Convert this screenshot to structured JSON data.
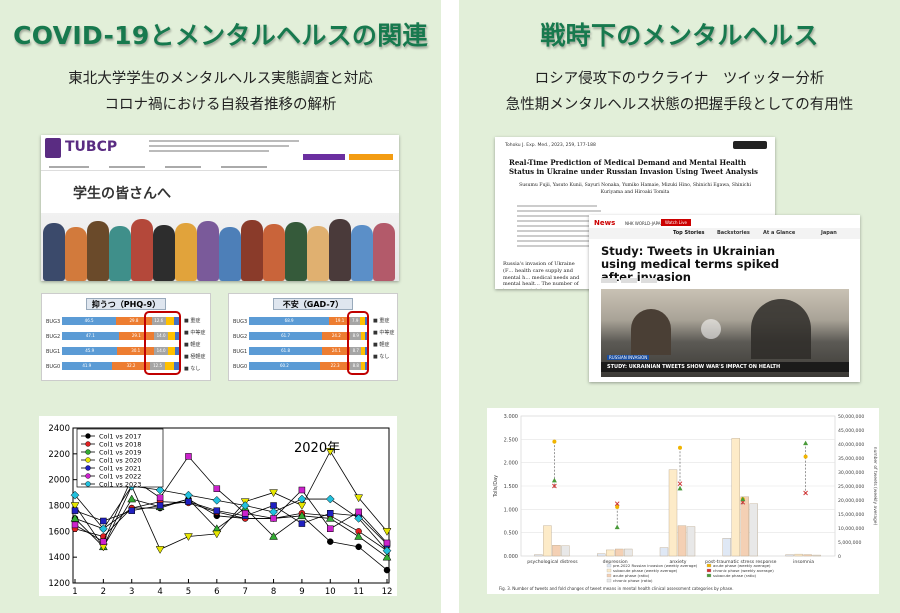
{
  "left": {
    "title": "COVID-19とメンタルヘルスの関連",
    "subtitle1": "東北大学学生のメンタルヘルス実態調査と対応",
    "subtitle2": "コロナ禍における自殺者推移の解析",
    "web": {
      "logo": "TUBCP",
      "heading": "学生の皆さんへ"
    },
    "phq": {
      "title": "抑うつ（PHQ-9）"
    },
    "gad": {
      "title": "不安（GAD-7）"
    }
  },
  "right": {
    "title": "戦時下のメンタルヘルス",
    "subtitle1": "ロシア侵攻下のウクライナ　ツイッター分析",
    "subtitle2": "急性期メンタルヘルス状態の把握手段としての有用性",
    "paper": {
      "journal": "Tohoku J. Exp. Med., 2023, 259, 177-188",
      "title": "Real-Time Prediction of Medical Demand and Mental Health Status in Ukraine under Russian Invasion Using Tweet Analysis",
      "authors": "Susumu Fujii, Yasuto Kunii, Sayuri Nonaka, Yumiko Hamaie, Mizuki Hino, Shinichi Egawa, Shinichi Kuriyama and Hiroaki Tomita",
      "body": "Russia's invasion of Ukraine (F… health care supply and mental h… medical needs and mental healt… The number of tweets containing"
    },
    "news": {
      "brand": "News",
      "nhk": "NHK WORLD-JAPAN",
      "watch": "Watch Live",
      "nav": [
        "Top Stories",
        "Backstories",
        "At a Glance",
        "Japan"
      ],
      "headline": "Study: Tweets in Ukrainian using medical terms spiked after invasion",
      "banner1": "RUSSIAN INVASION",
      "banner2": "STUDY: UKRAINIAN TWEETS SHOW WAR'S IMPACT ON HEALTH"
    }
  },
  "chart_data": [
    {
      "type": "line",
      "annotation": "2020年",
      "x": [
        1,
        2,
        3,
        4,
        5,
        6,
        7,
        8,
        9,
        10,
        11,
        12
      ],
      "ylim": [
        1200,
        2400
      ],
      "yticks": [
        1200,
        1400,
        1600,
        1800,
        2000,
        2200,
        2400
      ],
      "series": [
        {
          "name": "Col1 vs 2017",
          "color": "#000000",
          "values": [
            1700,
            1620,
            1780,
            1780,
            1850,
            1720,
            1700,
            1700,
            1720,
            1520,
            1480,
            1300
          ]
        },
        {
          "name": "Col1 vs 2018",
          "color": "#e02020",
          "values": [
            1620,
            1560,
            1780,
            1830,
            1820,
            1750,
            1700,
            1700,
            1740,
            1720,
            1600,
            1450
          ]
        },
        {
          "name": "Col1 vs 2019",
          "color": "#33aa33",
          "values": [
            1700,
            1480,
            1850,
            1790,
            1850,
            1620,
            1780,
            1560,
            1720,
            1700,
            1560,
            1400
          ]
        },
        {
          "name": "Col1 vs 2020",
          "color": "#e6e600",
          "values": [
            1800,
            1480,
            1950,
            1460,
            1560,
            1580,
            1830,
            1900,
            1800,
            2220,
            1860,
            1600
          ]
        },
        {
          "name": "Col1 vs 2021",
          "color": "#2020c0",
          "values": [
            1760,
            1680,
            1760,
            1800,
            1830,
            1760,
            1720,
            1800,
            1660,
            1740,
            1720,
            1500
          ]
        },
        {
          "name": "Col1 vs 2022",
          "color": "#cc22cc",
          "values": [
            1650,
            1520,
            2010,
            1860,
            2180,
            1930,
            1740,
            1700,
            1920,
            1620,
            1750,
            1510
          ]
        },
        {
          "name": "Col1 vs 2023",
          "color": "#22c0dd",
          "values": [
            1880,
            1620,
            1950,
            1920,
            1880,
            1840,
            1800,
            1750,
            1850,
            1850,
            1700,
            1450
          ]
        }
      ]
    },
    {
      "type": "bar",
      "title": "",
      "categories": [
        "psychological distress",
        "depression",
        "anxiety",
        "post-traumatic stress response",
        "insomnia"
      ],
      "ylabel": "Tolls/Day",
      "y2label": "number of tweets (weekly average)",
      "ylim": [
        0,
        3
      ],
      "yticks": [
        "0.000",
        "0.500",
        "1.000",
        "1.500",
        "2.000",
        "2.500",
        "3.000"
      ],
      "y2ticks": [
        "0",
        "5,000,000",
        "10,000,000",
        "15,000,000",
        "20,000,000",
        "25,000,000",
        "30,000,000",
        "35,000,000",
        "40,000,000",
        "45,000,000",
        "50,000,000"
      ],
      "series": [
        {
          "name": "pre-2022 Russian invasion (weekly average)",
          "color": "#dfe8f5",
          "values": [
            0.03,
            0.05,
            0.18,
            0.38,
            0.03
          ]
        },
        {
          "name": "subacute phase (weekly average)",
          "color": "#fdebc8",
          "values": [
            0.65,
            0.13,
            1.85,
            2.52,
            0.04
          ]
        },
        {
          "name": "acute phase (ratio)",
          "color": "#f4d0b4",
          "values": [
            0.23,
            0.15,
            0.65,
            1.27,
            0.03
          ]
        },
        {
          "name": "chronic phase (ratio)",
          "color": "#e8e8e8",
          "values": [
            0.22,
            0.15,
            0.63,
            1.12,
            0.02
          ]
        }
      ],
      "markers": [
        {
          "name": "acute phase (ratio) marker",
          "color": "#f0b400",
          "values": [
            2.45,
            1.05,
            2.32,
            1.22,
            2.13
          ]
        },
        {
          "name": "chronic phase (ratio) marker",
          "color": "#d03030",
          "values": [
            1.5,
            1.12,
            1.55,
            1.15,
            1.35
          ]
        },
        {
          "name": "subacute phase (ratio) marker",
          "color": "#4a9a3a",
          "values": [
            1.62,
            0.62,
            1.45,
            1.22,
            2.42
          ]
        }
      ],
      "legend": [
        "pre-2022 Russian invasion (weekly average)",
        "subacute phase (weekly average)",
        "acute phase (ratio)",
        "chronic phase (ratio)",
        "acute phase (weekly average)",
        "chronic phase (weekly average)",
        "subacute phase (ratio)"
      ],
      "caption": "Fig. 3. Number of tweets and fold changes of tweet means in mental health clinical assessment categories by phase."
    }
  ]
}
